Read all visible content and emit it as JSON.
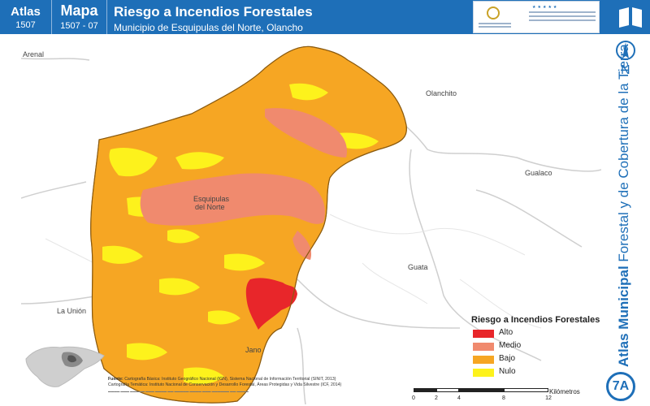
{
  "header": {
    "atlas_label": "Atlas",
    "atlas_number": "1507",
    "mapa_label": "Mapa",
    "mapa_number": "1507 - 07",
    "title": "Riesgo a Incendios Forestales",
    "subtitle": "Municipio de Esquipulas del Norte, Olancho"
  },
  "sidebar": {
    "north_letter": "N",
    "vertical_title_bold": "Atlas Municipal",
    "vertical_title_rest": " Forestal y de Cobertura de la Tierra",
    "badge": "7A"
  },
  "map": {
    "places": [
      {
        "name": "Arenal"
      },
      {
        "name": "Olanchito"
      },
      {
        "name": "Gualaco"
      },
      {
        "name": "Esquipulas"
      },
      {
        "name": "del Norte"
      },
      {
        "name": "Guata"
      },
      {
        "name": "La Unión"
      },
      {
        "name": "Jano"
      }
    ]
  },
  "legend": {
    "title": "Riesgo a Incendios Forestales",
    "items": [
      {
        "label": "Alto",
        "color": "#e8262a"
      },
      {
        "label": "Medio",
        "color": "#f08a6e"
      },
      {
        "label": "Bajo",
        "color": "#f6a623"
      },
      {
        "label": "Nulo",
        "color": "#fdf21c"
      }
    ]
  },
  "source": {
    "label": "Fuente:",
    "line1": "Cartografía Básica: Instituto Geográfico Nacional (IGN), Sistema Nacional de Información Territorial (SINIT, 2013)",
    "line2": "Cartografía Temática: Instituto Nacional de Conservación y Desarrollo Forestal, Áreas Protegidas y Vida Silvestre (ICF, 2014)"
  },
  "scale": {
    "ticks": [
      "0",
      "2",
      "4",
      "8",
      "12"
    ],
    "unit": "Kilómetros"
  },
  "colors": {
    "header_blue": "#1e6fb8",
    "alto": "#e8262a",
    "medio": "#f08a6e",
    "bajo": "#f6a623",
    "nulo": "#fdf21c"
  }
}
